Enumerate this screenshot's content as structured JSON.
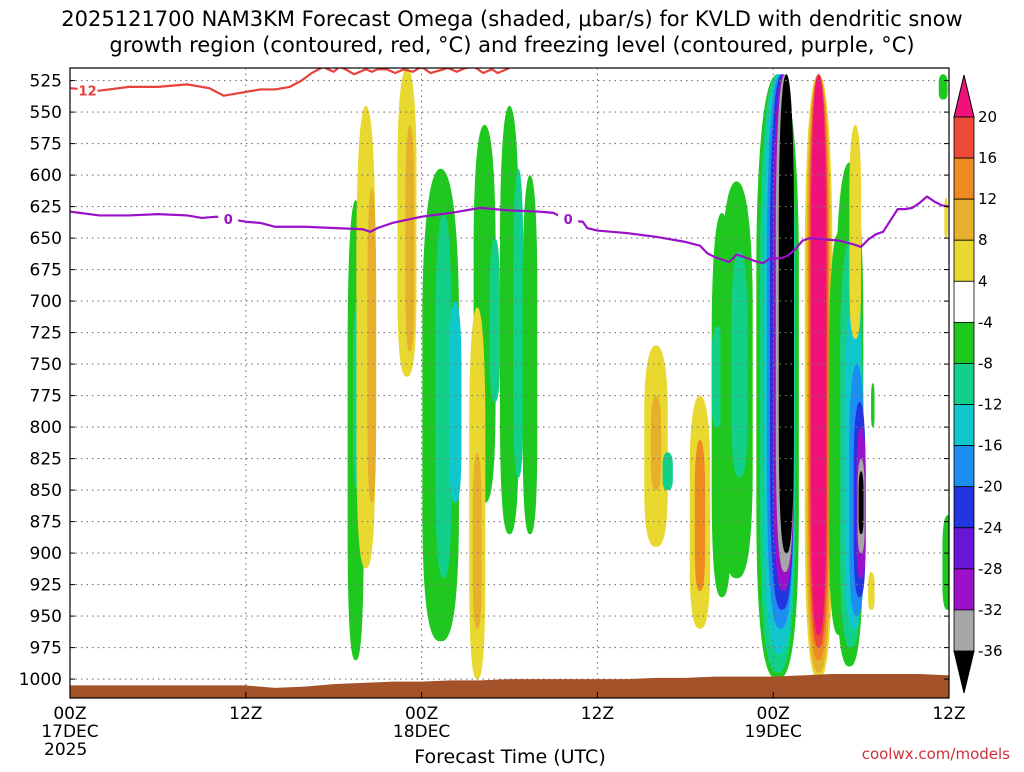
{
  "title_line1": "2025121700 NAM3KM Forecast Omega (shaded, μbar/s) for KVLD with dendritic snow",
  "title_line2": "growth region (contoured, red, °C) and freezing level (contoured, purple, °C)",
  "credit": "coolwx.com/models",
  "colors": {
    "temp_contour": "#e8413a",
    "freezing_contour": "#9a10c8",
    "terrain": "#a4522a",
    "grid": "#777777"
  },
  "chart_data": {
    "type": "heatmap",
    "title": "2025121700 NAM3KM Forecast Omega (shaded, μbar/s) for KVLD with dendritic snow growth region (contoured, red, °C) and freezing level (contoured, purple, °C)",
    "xlabel": "Forecast Time (UTC)",
    "ylabel": "",
    "x_unit": "forecast hour",
    "xlim": [
      0,
      60
    ],
    "ylim": [
      1015,
      515
    ],
    "y_scale": "pressure (hPa), inverted",
    "grid": true,
    "x_ticks": [
      {
        "hour": 0,
        "label": "00Z",
        "sub1": "17DEC",
        "sub2": "2025"
      },
      {
        "hour": 12,
        "label": "12Z",
        "sub1": "",
        "sub2": ""
      },
      {
        "hour": 24,
        "label": "00Z",
        "sub1": "18DEC",
        "sub2": ""
      },
      {
        "hour": 36,
        "label": "12Z",
        "sub1": "",
        "sub2": ""
      },
      {
        "hour": 48,
        "label": "00Z",
        "sub1": "19DEC",
        "sub2": ""
      },
      {
        "hour": 60,
        "label": "12Z",
        "sub1": "",
        "sub2": ""
      }
    ],
    "y_ticks": [
      "525",
      "550",
      "575",
      "600",
      "625",
      "650",
      "675",
      "700",
      "725",
      "750",
      "775",
      "800",
      "825",
      "850",
      "875",
      "900",
      "925",
      "950",
      "975",
      "1000"
    ],
    "colorbar": {
      "labels": [
        "20",
        "16",
        "12",
        "8",
        "4",
        "-4",
        "-8",
        "-12",
        "-16",
        "-20",
        "-24",
        "-28",
        "-32",
        "-36"
      ],
      "bins": [
        {
          "color": "#000000"
        },
        {
          "color": "#a6a6a6"
        },
        {
          "color": "#9b10c8"
        },
        {
          "color": "#6a16d6"
        },
        {
          "color": "#2236e0"
        },
        {
          "color": "#1c8ef2"
        },
        {
          "color": "#10c8cc"
        },
        {
          "color": "#12d08a"
        },
        {
          "color": "#1ec81e"
        },
        {
          "color": "#ffffff"
        },
        {
          "color": "#e8d830"
        },
        {
          "color": "#e6b02c"
        },
        {
          "color": "#ee8a22"
        },
        {
          "color": "#ee4a3a"
        },
        {
          "color": "#f0127a"
        }
      ]
    },
    "omega_regions": [
      {
        "h": 19.5,
        "p_top": 620,
        "p_bot": 985,
        "hw": 0.55,
        "color": "#1ec81e"
      },
      {
        "h": 19.6,
        "p_top": 700,
        "p_bot": 850,
        "hw": 0.28,
        "color": "#12d08a"
      },
      {
        "h": 25.3,
        "p_top": 595,
        "p_bot": 970,
        "hw": 1.25,
        "color": "#1ec81e"
      },
      {
        "h": 25.5,
        "p_top": 630,
        "p_bot": 920,
        "hw": 0.55,
        "color": "#12d08a"
      },
      {
        "h": 26.3,
        "p_top": 700,
        "p_bot": 860,
        "hw": 0.42,
        "color": "#10c8cc"
      },
      {
        "h": 28.3,
        "p_top": 560,
        "p_bot": 860,
        "hw": 0.75,
        "color": "#1ec81e"
      },
      {
        "h": 29.0,
        "p_top": 650,
        "p_bot": 780,
        "hw": 0.35,
        "color": "#12d08a"
      },
      {
        "h": 30.0,
        "p_top": 545,
        "p_bot": 885,
        "hw": 0.65,
        "color": "#1ec81e"
      },
      {
        "h": 30.6,
        "p_top": 595,
        "p_bot": 840,
        "hw": 0.35,
        "color": "#12d08a"
      },
      {
        "h": 31.4,
        "p_top": 600,
        "p_bot": 885,
        "hw": 0.5,
        "color": "#1ec81e"
      },
      {
        "h": 20.2,
        "p_top": 545,
        "p_bot": 912,
        "hw": 0.65,
        "color": "#e8d830"
      },
      {
        "h": 20.6,
        "p_top": 610,
        "p_bot": 860,
        "hw": 0.3,
        "color": "#e6b02c"
      },
      {
        "h": 23.0,
        "p_top": 515,
        "p_bot": 760,
        "hw": 0.65,
        "color": "#e8d830"
      },
      {
        "h": 23.2,
        "p_top": 560,
        "p_bot": 740,
        "hw": 0.3,
        "color": "#e6b02c"
      },
      {
        "h": 27.8,
        "p_top": 705,
        "p_bot": 1000,
        "hw": 0.55,
        "color": "#e8d830"
      },
      {
        "h": 27.8,
        "p_top": 820,
        "p_bot": 960,
        "hw": 0.3,
        "color": "#e6b02c"
      },
      {
        "h": 40.0,
        "p_top": 735,
        "p_bot": 895,
        "hw": 0.8,
        "color": "#e8d830"
      },
      {
        "h": 40.0,
        "p_top": 775,
        "p_bot": 850,
        "hw": 0.35,
        "color": "#e6b02c"
      },
      {
        "h": 43.0,
        "p_top": 775,
        "p_bot": 960,
        "hw": 0.7,
        "color": "#e8d830"
      },
      {
        "h": 43.0,
        "p_top": 810,
        "p_bot": 930,
        "hw": 0.35,
        "color": "#ee8a22"
      },
      {
        "h": 40.8,
        "p_top": 820,
        "p_bot": 850,
        "hw": 0.35,
        "color": "#12d08a"
      },
      {
        "h": 44.5,
        "p_top": 630,
        "p_bot": 935,
        "hw": 0.7,
        "color": "#1ec81e"
      },
      {
        "h": 44.2,
        "p_top": 720,
        "p_bot": 800,
        "hw": 0.4,
        "color": "#12d08a"
      },
      {
        "h": 45.5,
        "p_top": 605,
        "p_bot": 920,
        "hw": 1.1,
        "color": "#1ec81e"
      },
      {
        "h": 45.7,
        "p_top": 660,
        "p_bot": 840,
        "hw": 0.55,
        "color": "#12d08a"
      },
      {
        "h": 48.3,
        "p_top": 520,
        "p_bot": 1000,
        "hw": 1.45,
        "color": "#1ec81e"
      },
      {
        "h": 48.3,
        "p_top": 520,
        "p_bot": 995,
        "hw": 1.2,
        "color": "#12d08a"
      },
      {
        "h": 48.4,
        "p_top": 520,
        "p_bot": 980,
        "hw": 1.05,
        "color": "#10c8cc"
      },
      {
        "h": 48.5,
        "p_top": 520,
        "p_bot": 960,
        "hw": 0.92,
        "color": "#1c8ef2"
      },
      {
        "h": 48.6,
        "p_top": 520,
        "p_bot": 945,
        "hw": 0.82,
        "color": "#2236e0"
      },
      {
        "h": 48.7,
        "p_top": 520,
        "p_bot": 930,
        "hw": 0.72,
        "color": "#9b10c8"
      },
      {
        "h": 48.8,
        "p_top": 520,
        "p_bot": 915,
        "hw": 0.62,
        "color": "#a6a6a6"
      },
      {
        "h": 48.9,
        "p_top": 520,
        "p_bot": 900,
        "hw": 0.52,
        "color": "#000000"
      },
      {
        "h": 51.1,
        "p_top": 520,
        "p_bot": 1000,
        "hw": 0.95,
        "color": "#e8d830"
      },
      {
        "h": 51.1,
        "p_top": 520,
        "p_bot": 995,
        "hw": 0.82,
        "color": "#e6b02c"
      },
      {
        "h": 51.1,
        "p_top": 520,
        "p_bot": 985,
        "hw": 0.72,
        "color": "#ee8a22"
      },
      {
        "h": 51.1,
        "p_top": 520,
        "p_bot": 975,
        "hw": 0.62,
        "color": "#ee4a3a"
      },
      {
        "h": 51.1,
        "p_top": 520,
        "p_bot": 965,
        "hw": 0.52,
        "color": "#f0127a"
      },
      {
        "h": 52.5,
        "p_top": 645,
        "p_bot": 965,
        "hw": 0.7,
        "color": "#1ec81e"
      },
      {
        "h": 53.2,
        "p_top": 590,
        "p_bot": 990,
        "hw": 0.95,
        "color": "#1ec81e"
      },
      {
        "h": 53.3,
        "p_top": 650,
        "p_bot": 975,
        "hw": 0.75,
        "color": "#12d08a"
      },
      {
        "h": 53.5,
        "p_top": 700,
        "p_bot": 960,
        "hw": 0.62,
        "color": "#10c8cc"
      },
      {
        "h": 53.7,
        "p_top": 750,
        "p_bot": 950,
        "hw": 0.5,
        "color": "#1c8ef2"
      },
      {
        "h": 53.9,
        "p_top": 780,
        "p_bot": 935,
        "hw": 0.4,
        "color": "#2236e0"
      },
      {
        "h": 54.0,
        "p_top": 800,
        "p_bot": 920,
        "hw": 0.32,
        "color": "#9b10c8"
      },
      {
        "h": 54.0,
        "p_top": 825,
        "p_bot": 900,
        "hw": 0.24,
        "color": "#a6a6a6"
      },
      {
        "h": 54.0,
        "p_top": 835,
        "p_bot": 885,
        "hw": 0.17,
        "color": "#000000"
      },
      {
        "h": 53.6,
        "p_top": 560,
        "p_bot": 730,
        "hw": 0.4,
        "color": "#e8d830"
      },
      {
        "h": 54.8,
        "p_top": 765,
        "p_bot": 800,
        "hw": 0.12,
        "color": "#1ec81e"
      },
      {
        "h": 54.7,
        "p_top": 915,
        "p_bot": 945,
        "hw": 0.22,
        "color": "#e8d830"
      },
      {
        "h": 59.6,
        "p_top": 520,
        "p_bot": 540,
        "hw": 0.3,
        "color": "#1ec81e"
      },
      {
        "h": 59.9,
        "p_top": 870,
        "p_bot": 945,
        "hw": 0.35,
        "color": "#1ec81e"
      },
      {
        "h": 59.8,
        "p_top": 618,
        "p_bot": 650,
        "hw": 0.12,
        "color": "#e8d830"
      }
    ],
    "series": [
      {
        "name": "12",
        "color": "#e8413a",
        "points": [
          [
            0,
            531
          ],
          [
            2,
            533
          ],
          [
            4,
            530
          ],
          [
            6,
            530
          ],
          [
            8,
            528
          ],
          [
            9.5,
            531
          ],
          [
            10.5,
            537
          ],
          [
            11.5,
            535
          ],
          [
            13,
            532
          ],
          [
            14,
            532
          ],
          [
            15,
            530
          ],
          [
            15.8,
            525
          ],
          [
            16.5,
            519
          ],
          [
            17.3,
            514
          ],
          [
            17.6,
            516
          ],
          [
            18,
            518
          ],
          [
            18.4,
            514
          ],
          [
            18.8,
            516
          ],
          [
            19.4,
            520
          ],
          [
            19.8,
            518
          ],
          [
            20.2,
            516
          ],
          [
            20.6,
            518
          ],
          [
            21,
            516
          ],
          [
            21.6,
            516
          ],
          [
            22.2,
            519
          ],
          [
            22.8,
            516
          ],
          [
            23.4,
            518
          ],
          [
            24,
            514
          ],
          [
            24.6,
            519
          ],
          [
            25.2,
            517
          ],
          [
            25.8,
            515
          ],
          [
            26.4,
            518
          ],
          [
            27,
            515
          ],
          [
            27.6,
            514
          ],
          [
            28.2,
            519
          ],
          [
            28.8,
            516
          ],
          [
            29.2,
            519
          ],
          [
            30,
            515
          ]
        ]
      },
      {
        "name": "0",
        "color": "#9a10c8",
        "points": [
          [
            0,
            629
          ],
          [
            2,
            632
          ],
          [
            4,
            632
          ],
          [
            6,
            631
          ],
          [
            8,
            632
          ],
          [
            9,
            634
          ],
          [
            10,
            633
          ],
          [
            11,
            635
          ],
          [
            12,
            637
          ],
          [
            13,
            638
          ],
          [
            14,
            641
          ],
          [
            16,
            641
          ],
          [
            18,
            642
          ],
          [
            20,
            643
          ],
          [
            20.5,
            645
          ],
          [
            21,
            642
          ],
          [
            22,
            638
          ],
          [
            24,
            633
          ],
          [
            26,
            630
          ],
          [
            28,
            626
          ],
          [
            30,
            628
          ],
          [
            32,
            629
          ],
          [
            33,
            630
          ],
          [
            34,
            636
          ],
          [
            35,
            637
          ],
          [
            35.3,
            642
          ],
          [
            36,
            644
          ],
          [
            38,
            646
          ],
          [
            40,
            649
          ],
          [
            42,
            653
          ],
          [
            43,
            656
          ],
          [
            43.5,
            662
          ],
          [
            44,
            665
          ],
          [
            44.5,
            667
          ],
          [
            45,
            669
          ],
          [
            45.5,
            663
          ],
          [
            46,
            665
          ],
          [
            46.7,
            668
          ],
          [
            47.3,
            670
          ],
          [
            47.8,
            666
          ],
          [
            48.5,
            666
          ],
          [
            49,
            664
          ],
          [
            49.5,
            659
          ],
          [
            50,
            652
          ],
          [
            50.5,
            650
          ],
          [
            51.5,
            651
          ],
          [
            52.5,
            652
          ],
          [
            53.5,
            655
          ],
          [
            54,
            657
          ],
          [
            54.5,
            651
          ],
          [
            55,
            647
          ],
          [
            55.5,
            645
          ],
          [
            56,
            636
          ],
          [
            56.5,
            627
          ],
          [
            57,
            627
          ],
          [
            57.5,
            626
          ],
          [
            58,
            622
          ],
          [
            58.5,
            617
          ],
          [
            59,
            621
          ],
          [
            59.5,
            624
          ],
          [
            60,
            625
          ]
        ]
      }
    ],
    "contour_labels": [
      {
        "text": "12",
        "hour": 1.2,
        "p": 533,
        "color": "#e8413a"
      },
      {
        "text": "0",
        "hour": 10.8,
        "p": 635,
        "color": "#9a10c8"
      },
      {
        "text": "0",
        "hour": 34.0,
        "p": 635,
        "color": "#9a10c8"
      }
    ],
    "terrain": {
      "color": "#a4522a",
      "points": [
        [
          0,
          1005
        ],
        [
          4,
          1005
        ],
        [
          8,
          1005
        ],
        [
          12,
          1005
        ],
        [
          14,
          1007
        ],
        [
          16,
          1006
        ],
        [
          18,
          1004
        ],
        [
          20,
          1003
        ],
        [
          22,
          1002
        ],
        [
          24,
          1002
        ],
        [
          26,
          1001
        ],
        [
          28,
          1001
        ],
        [
          30,
          1000
        ],
        [
          32,
          1000
        ],
        [
          34,
          1000
        ],
        [
          36,
          1000
        ],
        [
          38,
          1000
        ],
        [
          40,
          999
        ],
        [
          42,
          999
        ],
        [
          44,
          998
        ],
        [
          46,
          998
        ],
        [
          48,
          998
        ],
        [
          50,
          997
        ],
        [
          52,
          996
        ],
        [
          54,
          996
        ],
        [
          56,
          996
        ],
        [
          58,
          996
        ],
        [
          60,
          997
        ]
      ]
    }
  }
}
